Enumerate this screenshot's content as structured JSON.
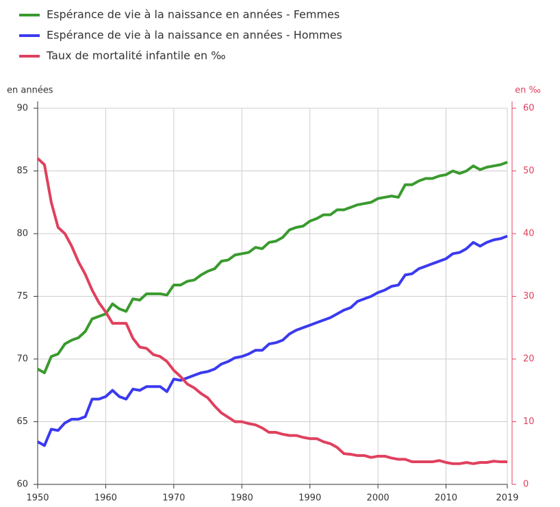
{
  "chart_data": {
    "type": "line",
    "x": [
      1950,
      1951,
      1952,
      1953,
      1954,
      1955,
      1956,
      1957,
      1958,
      1959,
      1960,
      1961,
      1962,
      1963,
      1964,
      1965,
      1966,
      1967,
      1968,
      1969,
      1970,
      1971,
      1972,
      1973,
      1974,
      1975,
      1976,
      1977,
      1978,
      1979,
      1980,
      1981,
      1982,
      1983,
      1984,
      1985,
      1986,
      1987,
      1988,
      1989,
      1990,
      1991,
      1992,
      1993,
      1994,
      1995,
      1996,
      1997,
      1998,
      1999,
      2000,
      2001,
      2002,
      2003,
      2004,
      2005,
      2006,
      2007,
      2008,
      2009,
      2010,
      2011,
      2012,
      2013,
      2014,
      2015,
      2016,
      2017,
      2018,
      2019
    ],
    "series": [
      {
        "name": "Espérance de vie à la naissance en années - Femmes",
        "color": "#3a9a2e",
        "values": [
          69.2,
          68.9,
          70.2,
          70.4,
          71.2,
          71.5,
          71.7,
          72.2,
          73.2,
          73.4,
          73.6,
          74.4,
          74.0,
          73.8,
          74.8,
          74.7,
          75.2,
          75.2,
          75.2,
          75.1,
          75.9,
          75.9,
          76.2,
          76.3,
          76.7,
          77.0,
          77.2,
          77.8,
          77.9,
          78.3,
          78.4,
          78.5,
          78.9,
          78.8,
          79.3,
          79.4,
          79.7,
          80.3,
          80.5,
          80.6,
          81.0,
          81.2,
          81.5,
          81.5,
          81.9,
          81.9,
          82.1,
          82.3,
          82.4,
          82.5,
          82.8,
          82.9,
          83.0,
          82.9,
          83.9,
          83.9,
          84.2,
          84.4,
          84.4,
          84.6,
          84.7,
          85.0,
          84.8,
          85.0,
          85.4,
          85.1,
          85.3,
          85.4,
          85.5,
          85.7
        ]
      },
      {
        "name": "Espérance de vie à la naissance en années - Hommes",
        "color": "#3a3af0",
        "values": [
          63.4,
          63.1,
          64.4,
          64.3,
          64.9,
          65.2,
          65.2,
          65.4,
          66.8,
          66.8,
          67.0,
          67.5,
          67.0,
          66.8,
          67.6,
          67.5,
          67.8,
          67.8,
          67.8,
          67.4,
          68.4,
          68.3,
          68.5,
          68.7,
          68.9,
          69.0,
          69.2,
          69.6,
          69.8,
          70.1,
          70.2,
          70.4,
          70.7,
          70.7,
          71.2,
          71.3,
          71.5,
          72.0,
          72.3,
          72.5,
          72.7,
          72.9,
          73.1,
          73.3,
          73.6,
          73.9,
          74.1,
          74.6,
          74.8,
          75.0,
          75.3,
          75.5,
          75.8,
          75.9,
          76.7,
          76.8,
          77.2,
          77.4,
          77.6,
          77.8,
          78.0,
          78.4,
          78.5,
          78.8,
          79.3,
          79.0,
          79.3,
          79.5,
          79.6,
          79.8
        ]
      },
      {
        "name": "Taux de mortalité infantile en ‰",
        "color": "#e0405e",
        "axis": "y2",
        "values": [
          52,
          51,
          45,
          41,
          40,
          38,
          35.5,
          33.5,
          31,
          29,
          27.5,
          25.7,
          25.7,
          25.7,
          23.3,
          21.9,
          21.7,
          20.7,
          20.4,
          19.6,
          18.2,
          17.2,
          16,
          15.4,
          14.5,
          13.8,
          12.5,
          11.4,
          10.7,
          10.0,
          10.0,
          9.7,
          9.5,
          9.0,
          8.3,
          8.3,
          8.0,
          7.8,
          7.8,
          7.5,
          7.3,
          7.3,
          6.8,
          6.5,
          5.9,
          4.9,
          4.8,
          4.6,
          4.6,
          4.3,
          4.5,
          4.5,
          4.2,
          4.0,
          4.0,
          3.6,
          3.6,
          3.6,
          3.6,
          3.8,
          3.5,
          3.3,
          3.3,
          3.5,
          3.3,
          3.5,
          3.5,
          3.7,
          3.6,
          3.6
        ]
      }
    ],
    "y_label": "en années",
    "y2_label": "en ‰",
    "xlim": [
      1950,
      2019
    ],
    "xticks": [
      1950,
      1960,
      1970,
      1980,
      1990,
      2000,
      2010,
      2019
    ],
    "ylim": [
      60,
      90
    ],
    "yticks": [
      60,
      65,
      70,
      75,
      80,
      85,
      90
    ],
    "y2lim": [
      0,
      60
    ],
    "y2ticks": [
      0,
      10,
      20,
      30,
      40,
      50,
      60
    ],
    "grid": true
  }
}
